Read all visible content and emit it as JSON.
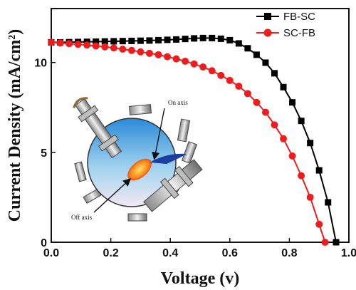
{
  "chart_data": {
    "type": "line",
    "xlabel": "Voltage (v)",
    "ylabel_main": "Current Density (mA/cm",
    "ylabel_sup": "2",
    "ylabel_close": ")",
    "xlim": [
      0.0,
      1.0
    ],
    "ylim": [
      0,
      13
    ],
    "xticks": [
      0.0,
      0.2,
      0.4,
      0.6,
      0.8,
      1.0
    ],
    "xtick_labels": [
      "0.0",
      "0.2",
      "0.4",
      "0.6",
      "0.8",
      "1.0"
    ],
    "yticks": [
      0,
      5,
      10
    ],
    "ytick_labels": [
      "0",
      "5",
      "10"
    ],
    "legend_position": "top-right",
    "grid": false,
    "series": [
      {
        "name": "FB-SC",
        "color": "#000000",
        "marker": "square",
        "x": [
          0.0,
          0.03,
          0.06,
          0.09,
          0.12,
          0.15,
          0.18,
          0.21,
          0.24,
          0.27,
          0.3,
          0.33,
          0.36,
          0.39,
          0.42,
          0.45,
          0.48,
          0.51,
          0.54,
          0.57,
          0.6,
          0.63,
          0.66,
          0.69,
          0.72,
          0.75,
          0.78,
          0.81,
          0.84,
          0.87,
          0.9,
          0.93,
          0.957
        ],
        "y": [
          11.12,
          11.12,
          11.13,
          11.14,
          11.15,
          11.16,
          11.17,
          11.18,
          11.19,
          11.2,
          11.21,
          11.22,
          11.24,
          11.26,
          11.28,
          11.31,
          11.34,
          11.36,
          11.36,
          11.32,
          11.24,
          11.06,
          10.79,
          10.43,
          9.99,
          9.4,
          8.63,
          7.78,
          6.75,
          5.52,
          4.0,
          2.22,
          0.0
        ]
      },
      {
        "name": "SC-FB",
        "color": "#ee1c1c",
        "marker": "circle",
        "x": [
          0.0,
          0.03,
          0.06,
          0.09,
          0.12,
          0.15,
          0.18,
          0.21,
          0.24,
          0.27,
          0.3,
          0.33,
          0.36,
          0.39,
          0.42,
          0.45,
          0.48,
          0.51,
          0.54,
          0.57,
          0.6,
          0.63,
          0.66,
          0.69,
          0.72,
          0.75,
          0.78,
          0.81,
          0.84,
          0.87,
          0.9,
          0.92
        ],
        "y": [
          11.12,
          11.09,
          11.05,
          11.01,
          10.97,
          10.92,
          10.87,
          10.81,
          10.74,
          10.67,
          10.59,
          10.51,
          10.43,
          10.32,
          10.2,
          10.07,
          9.92,
          9.75,
          9.54,
          9.28,
          9.0,
          8.68,
          8.27,
          7.78,
          7.23,
          6.53,
          5.76,
          4.8,
          3.7,
          2.5,
          1.0,
          0.0
        ]
      }
    ],
    "inset": {
      "labels": [
        "On axis",
        "Off axis"
      ]
    }
  }
}
